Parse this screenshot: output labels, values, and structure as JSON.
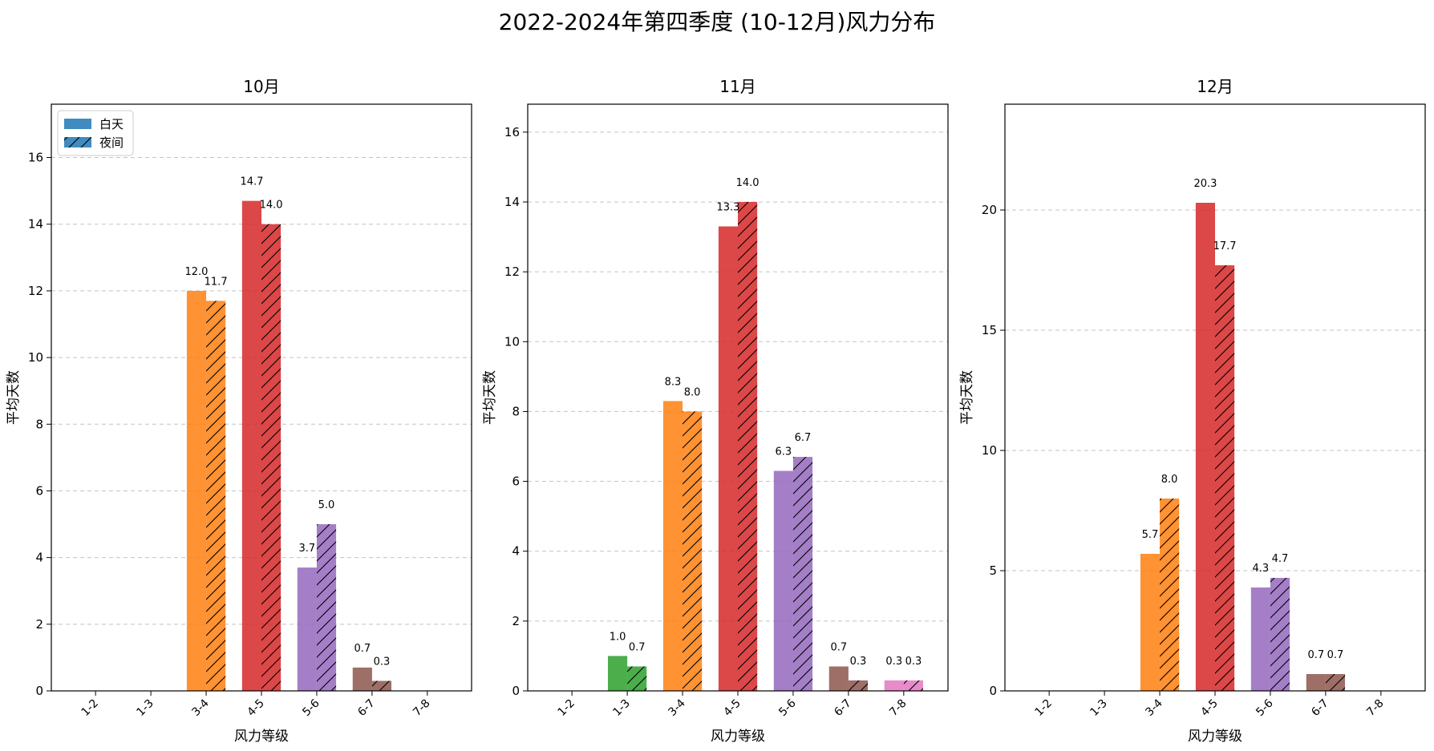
{
  "figure_title": "2022-2024年第四季度 (10-12月)风力分布",
  "legend": {
    "day_label": "白天",
    "night_label": "夜间"
  },
  "colors": {
    "categories": [
      "#1f77b4",
      "#2ca02c",
      "#ff7f0e",
      "#d62728",
      "#9467bd",
      "#8c564b",
      "#e377c2"
    ],
    "legend_swatch": "#1f77b4",
    "grid": "#b0b0b0"
  },
  "chart_data": [
    {
      "type": "bar",
      "title": "10月",
      "xlabel": "风力等级",
      "ylabel": "平均天数",
      "categories": [
        "1-2",
        "1-3",
        "3-4",
        "4-5",
        "5-6",
        "6-7",
        "7-8"
      ],
      "ylim": [
        0,
        17.6
      ],
      "yticks": [
        0,
        2,
        4,
        6,
        8,
        10,
        12,
        14,
        16
      ],
      "grid": "y-dashed",
      "legend_position": "top-left",
      "series": [
        {
          "name": "白天",
          "values": [
            0,
            0,
            12.0,
            14.7,
            3.7,
            0.7,
            0
          ],
          "labels": [
            "",
            "",
            "12.0",
            "14.7",
            "3.7",
            "0.7",
            ""
          ]
        },
        {
          "name": "夜间",
          "values": [
            0,
            0,
            11.7,
            14.0,
            5.0,
            0.3,
            0
          ],
          "labels": [
            "",
            "",
            "11.7",
            "14.0",
            "5.0",
            "0.3",
            ""
          ]
        }
      ]
    },
    {
      "type": "bar",
      "title": "11月",
      "xlabel": "风力等级",
      "ylabel": "平均天数",
      "categories": [
        "1-2",
        "1-3",
        "3-4",
        "4-5",
        "5-6",
        "6-7",
        "7-8"
      ],
      "ylim": [
        0,
        16.8
      ],
      "yticks": [
        0,
        2,
        4,
        6,
        8,
        10,
        12,
        14,
        16
      ],
      "grid": "y-dashed",
      "series": [
        {
          "name": "白天",
          "values": [
            0,
            1.0,
            8.3,
            13.3,
            6.3,
            0.7,
            0.3
          ],
          "labels": [
            "",
            "1.0",
            "8.3",
            "13.3",
            "6.3",
            "0.7",
            "0.3"
          ]
        },
        {
          "name": "夜间",
          "values": [
            0,
            0.7,
            8.0,
            14.0,
            6.7,
            0.3,
            0.3
          ],
          "labels": [
            "",
            "0.7",
            "8.0",
            "14.0",
            "6.7",
            "0.3",
            "0.3"
          ]
        }
      ]
    },
    {
      "type": "bar",
      "title": "12月",
      "xlabel": "风力等级",
      "ylabel": "平均天数",
      "categories": [
        "1-2",
        "1-3",
        "3-4",
        "4-5",
        "5-6",
        "6-7",
        "7-8"
      ],
      "ylim": [
        0,
        24.4
      ],
      "yticks": [
        0,
        5,
        10,
        15,
        20
      ],
      "grid": "y-dashed",
      "series": [
        {
          "name": "白天",
          "values": [
            0,
            0,
            5.7,
            20.3,
            4.3,
            0.7,
            0
          ],
          "labels": [
            "",
            "",
            "5.7",
            "20.3",
            "4.3",
            "0.7",
            ""
          ]
        },
        {
          "name": "夜间",
          "values": [
            0,
            0,
            8.0,
            17.7,
            4.7,
            0.7,
            0
          ],
          "labels": [
            "",
            "",
            "8.0",
            "17.7",
            "4.7",
            "0.7",
            ""
          ]
        }
      ]
    }
  ]
}
